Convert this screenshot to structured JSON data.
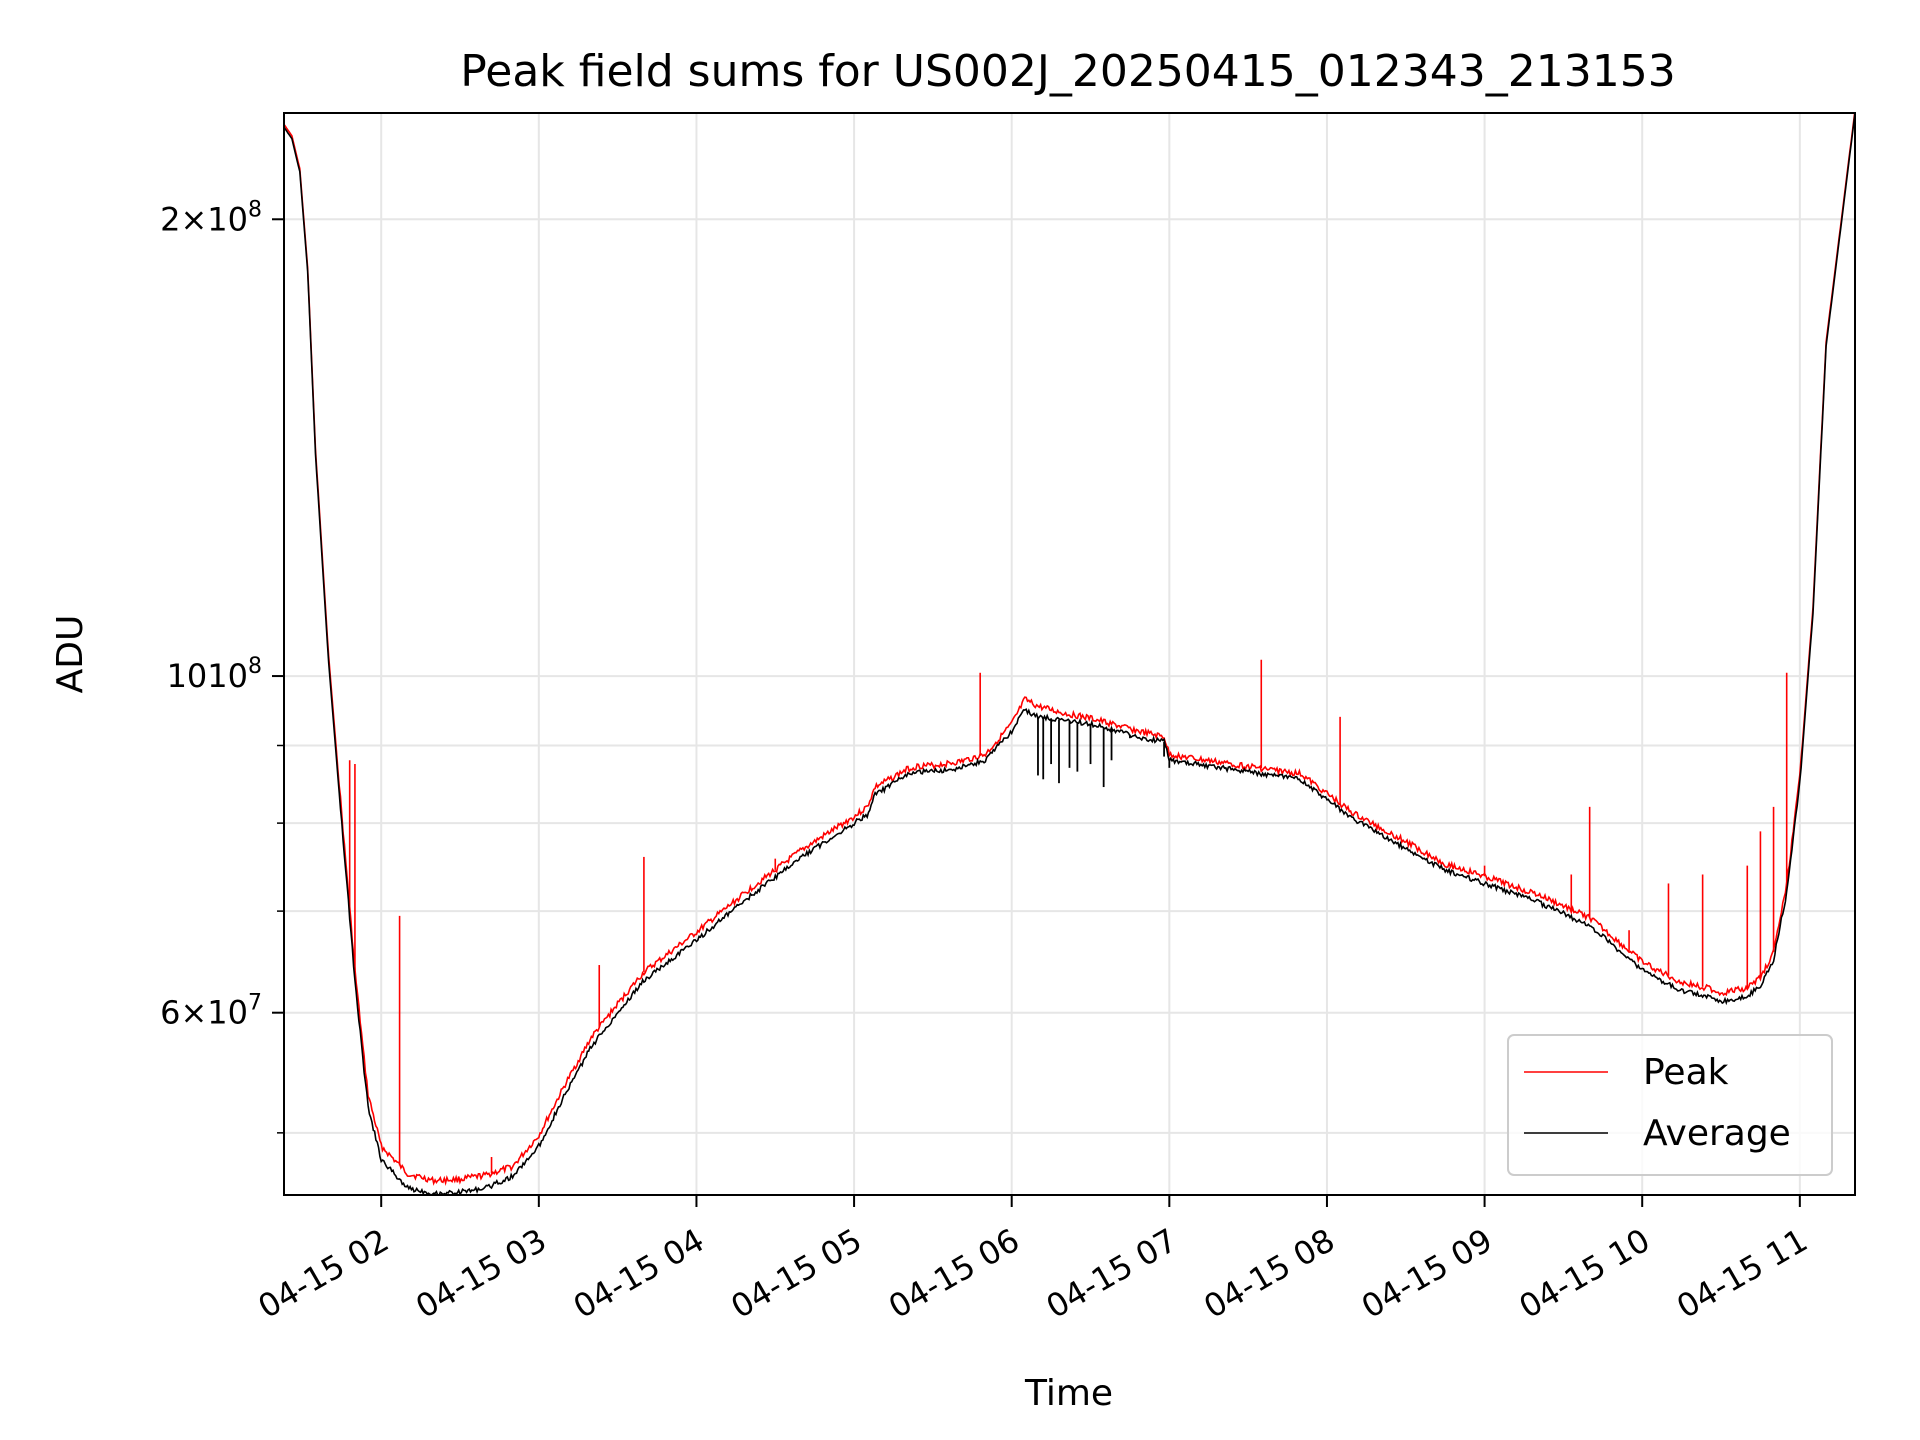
{
  "chart_data": {
    "type": "line",
    "title": "Peak field sums for US002J_20250415_012343_213153",
    "xlabel": "Time",
    "ylabel": "ADU",
    "yscale": "log",
    "ylim": [
      45500000,
      235000000
    ],
    "xlim": [
      "04-15 01:23",
      "04-15 11:21"
    ],
    "x_ticks": [
      "04-15 02",
      "04-15 03",
      "04-15 04",
      "04-15 05",
      "04-15 06",
      "04-15 07",
      "04-15 08",
      "04-15 09",
      "04-15 10",
      "04-15 11"
    ],
    "y_ticks_major": [
      {
        "value": 200000000,
        "label_mant": "2",
        "label_times": true,
        "label_exp": "8"
      },
      {
        "value": 100000000,
        "label_mant": "10",
        "label_times": false,
        "label_exp": "8"
      },
      {
        "value": 60000000,
        "label_mant": "6",
        "label_times": true,
        "label_exp": "7"
      }
    ],
    "y_ticks_minor": [
      50000000,
      70000000,
      80000000,
      90000000
    ],
    "grid": true,
    "legend": {
      "position": "lower-right",
      "entries": [
        "Peak",
        "Average"
      ]
    },
    "colors": {
      "Peak": "#ff0000",
      "Average": "#000000"
    },
    "series": [
      {
        "name": "Average",
        "x": [
          "04-15 01:23",
          "04-15 01:26",
          "04-15 01:29",
          "04-15 01:32",
          "04-15 01:35",
          "04-15 01:40",
          "04-15 01:45",
          "04-15 01:50",
          "04-15 01:53",
          "04-15 01:55",
          "04-15 02:00",
          "04-15 02:10",
          "04-15 02:20",
          "04-15 02:30",
          "04-15 02:40",
          "04-15 02:50",
          "04-15 03:00",
          "04-15 03:10",
          "04-15 03:20",
          "04-15 03:30",
          "04-15 03:40",
          "04-15 04:00",
          "04-15 04:20",
          "04-15 04:40",
          "04-15 05:00",
          "04-15 05:05",
          "04-15 05:08",
          "04-15 05:15",
          "04-15 05:20",
          "04-15 05:25",
          "04-15 05:30",
          "04-15 05:40",
          "04-15 05:50",
          "04-15 06:00",
          "04-15 06:05",
          "04-15 06:10",
          "04-15 06:20",
          "04-15 06:30",
          "04-15 06:40",
          "04-15 06:50",
          "04-15 06:58",
          "04-15 07:00",
          "04-15 07:10",
          "04-15 07:30",
          "04-15 07:50",
          "04-15 08:10",
          "04-15 08:30",
          "04-15 08:45",
          "04-15 09:00",
          "04-15 09:20",
          "04-15 09:40",
          "04-15 10:00",
          "04-15 10:15",
          "04-15 10:25",
          "04-15 10:30",
          "04-15 10:40",
          "04-15 10:45",
          "04-15 10:50",
          "04-15 10:55",
          "04-15 11:00",
          "04-15 11:05",
          "04-15 11:10",
          "04-15 11:21"
        ],
        "values": [
          230000000,
          226000000,
          215000000,
          185000000,
          140000000,
          102000000,
          80000000,
          63000000,
          56000000,
          52000000,
          48000000,
          46000000,
          45600000,
          45700000,
          46000000,
          46800000,
          49000000,
          53000000,
          57000000,
          60000000,
          63000000,
          67000000,
          71500000,
          76000000,
          80000000,
          81000000,
          83500000,
          85000000,
          86000000,
          86500000,
          86500000,
          87000000,
          88000000,
          92000000,
          95000000,
          94000000,
          93500000,
          93000000,
          92000000,
          91000000,
          90500000,
          88000000,
          87500000,
          86500000,
          85500000,
          80500000,
          77000000,
          74500000,
          73000000,
          71000000,
          68500000,
          64000000,
          62000000,
          61500000,
          61000000,
          61500000,
          62500000,
          65000000,
          72000000,
          85000000,
          110000000,
          165000000,
          235000000
        ]
      },
      {
        "name": "Peak",
        "x": [
          "04-15 01:23",
          "04-15 01:26",
          "04-15 01:29",
          "04-15 01:32",
          "04-15 01:35",
          "04-15 01:40",
          "04-15 01:45",
          "04-15 01:50",
          "04-15 01:53",
          "04-15 01:55",
          "04-15 02:00",
          "04-15 02:10",
          "04-15 02:20",
          "04-15 02:30",
          "04-15 02:40",
          "04-15 02:50",
          "04-15 03:00",
          "04-15 03:10",
          "04-15 03:20",
          "04-15 03:30",
          "04-15 03:40",
          "04-15 04:00",
          "04-15 04:20",
          "04-15 04:40",
          "04-15 05:00",
          "04-15 05:05",
          "04-15 05:08",
          "04-15 05:15",
          "04-15 05:20",
          "04-15 05:25",
          "04-15 05:30",
          "04-15 05:40",
          "04-15 05:50",
          "04-15 06:00",
          "04-15 06:05",
          "04-15 06:10",
          "04-15 06:20",
          "04-15 06:30",
          "04-15 06:40",
          "04-15 06:50",
          "04-15 06:58",
          "04-15 07:00",
          "04-15 07:10",
          "04-15 07:30",
          "04-15 07:50",
          "04-15 08:10",
          "04-15 08:30",
          "04-15 08:45",
          "04-15 09:00",
          "04-15 09:20",
          "04-15 09:40",
          "04-15 10:00",
          "04-15 10:15",
          "04-15 10:25",
          "04-15 10:30",
          "04-15 10:40",
          "04-15 10:45",
          "04-15 10:50",
          "04-15 10:55",
          "04-15 11:00",
          "04-15 11:05",
          "04-15 11:10",
          "04-15 11:21"
        ],
        "values": [
          231000000,
          227000000,
          216000000,
          186000000,
          141000000,
          103000000,
          81000000,
          64000000,
          57000000,
          53000000,
          49000000,
          47000000,
          46500000,
          46600000,
          46900000,
          47500000,
          49800000,
          53800000,
          57800000,
          60800000,
          63800000,
          67800000,
          72300000,
          76800000,
          80800000,
          82000000,
          84500000,
          85800000,
          86800000,
          87300000,
          87300000,
          87800000,
          88800000,
          93000000,
          96500000,
          95500000,
          94500000,
          93800000,
          92800000,
          91800000,
          91200000,
          88800000,
          88200000,
          87200000,
          86200000,
          81200000,
          77800000,
          75200000,
          73800000,
          71800000,
          69300000,
          64800000,
          62800000,
          62300000,
          61800000,
          62300000,
          63300000,
          65800000,
          72800000,
          85800000,
          111000000,
          166000000,
          236000000
        ]
      }
    ],
    "spikes": [
      {
        "x": "04-15 01:48",
        "value": 88000000
      },
      {
        "x": "04-15 01:50",
        "value": 87500000
      },
      {
        "x": "04-15 02:07",
        "value": 69500000
      },
      {
        "x": "04-15 02:42",
        "value": 48200000
      },
      {
        "x": "04-15 03:23",
        "value": 64500000
      },
      {
        "x": "04-15 03:40",
        "value": 76000000
      },
      {
        "x": "04-15 04:30",
        "value": 75800000
      },
      {
        "x": "04-15 05:48",
        "value": 100500000
      },
      {
        "x": "04-15 07:35",
        "value": 102500000
      },
      {
        "x": "04-15 08:05",
        "value": 94000000
      },
      {
        "x": "04-15 09:00",
        "value": 75000000
      },
      {
        "x": "04-15 09:33",
        "value": 74000000
      },
      {
        "x": "04-15 09:40",
        "value": 82000000
      },
      {
        "x": "04-15 09:55",
        "value": 68000000
      },
      {
        "x": "04-15 10:10",
        "value": 73000000
      },
      {
        "x": "04-15 10:23",
        "value": 74000000
      },
      {
        "x": "04-15 10:40",
        "value": 75000000
      },
      {
        "x": "04-15 10:45",
        "value": 79000000
      },
      {
        "x": "04-15 10:50",
        "value": 82000000
      },
      {
        "x": "04-15 10:55",
        "value": 100500000
      }
    ],
    "dips": [
      {
        "x": "04-15 06:10",
        "value": 86000000
      },
      {
        "x": "04-15 06:12",
        "value": 85500000
      },
      {
        "x": "04-15 06:15",
        "value": 87500000
      },
      {
        "x": "04-15 06:18",
        "value": 85000000
      },
      {
        "x": "04-15 06:22",
        "value": 87000000
      },
      {
        "x": "04-15 06:25",
        "value": 86500000
      },
      {
        "x": "04-15 06:30",
        "value": 87500000
      },
      {
        "x": "04-15 06:35",
        "value": 84500000
      },
      {
        "x": "04-15 06:38",
        "value": 88000000
      },
      {
        "x": "04-15 06:45",
        "value": 91000000
      },
      {
        "x": "04-15 06:58",
        "value": 88500000
      },
      {
        "x": "04-15 07:00",
        "value": 87000000
      }
    ]
  }
}
